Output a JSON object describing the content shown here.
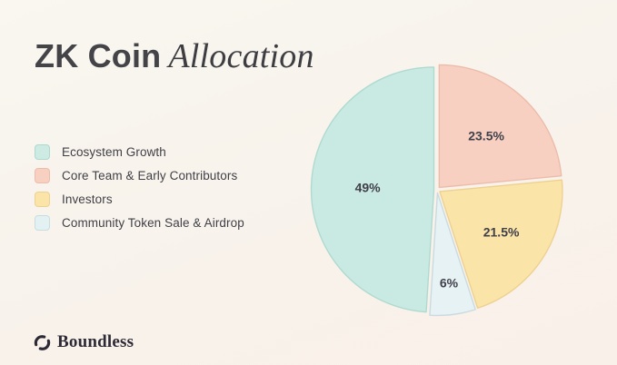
{
  "title": {
    "part1": "ZK Coin",
    "part2": "Allocation"
  },
  "legend": {
    "items": [
      {
        "label": "Ecosystem Growth",
        "color": "#cdeae3",
        "border": "#aed9cf"
      },
      {
        "label": "Core Team & Early Contributors",
        "color": "#f8d0c2",
        "border": "#ecbcab"
      },
      {
        "label": "Investors",
        "color": "#fbe4a8",
        "border": "#edd190"
      },
      {
        "label": "Community Token Sale & Airdrop",
        "color": "#e3f1f3",
        "border": "#c7dde1"
      }
    ]
  },
  "chart_data": {
    "type": "pie",
    "title": "ZK Coin Allocation",
    "start_angle_deg": 0,
    "direction": "clockwise",
    "legend_position": "left",
    "slices": [
      {
        "label": "Core Team & Early Contributors",
        "value": 23.5,
        "pct_label": "23.5%",
        "color": "#f8d0c2",
        "border": "#ecbcab",
        "label_r": 0.57
      },
      {
        "label": "Investors",
        "value": 21.5,
        "pct_label": "21.5%",
        "color": "#fbe4a8",
        "border": "#edd190",
        "label_r": 0.6
      },
      {
        "label": "Community Token Sale & Airdrop",
        "value": 6,
        "pct_label": "6%",
        "color": "#e7f2f5",
        "border": "#c9dbe0",
        "label_r": 0.74
      },
      {
        "label": "Ecosystem Growth",
        "value": 49,
        "pct_label": "49%",
        "color": "#c9eae2",
        "border": "#afdad0",
        "label_r": 0.54
      }
    ]
  },
  "footer": {
    "brand": "Boundless"
  }
}
